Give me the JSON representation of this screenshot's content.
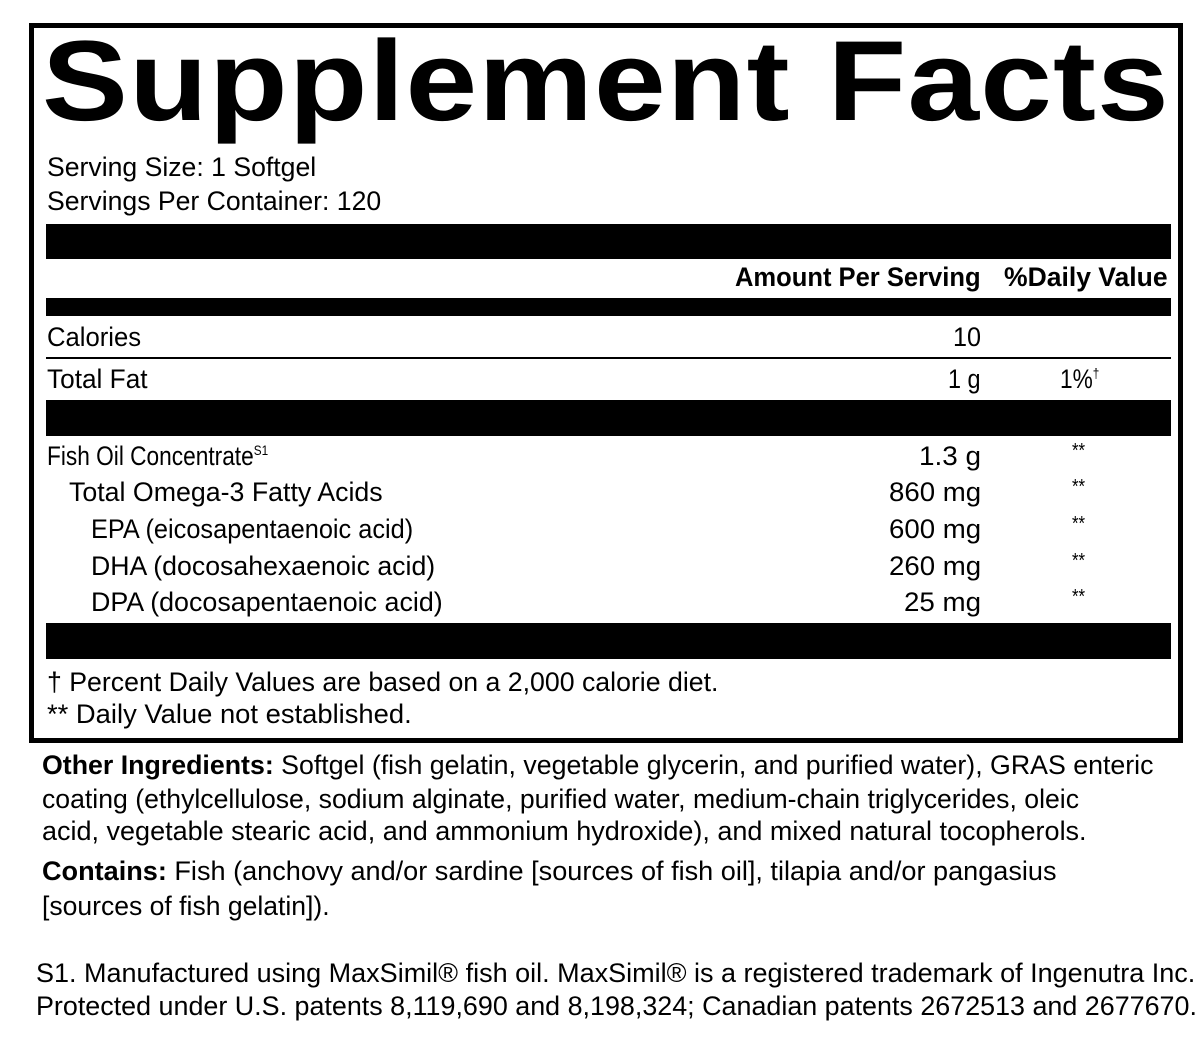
{
  "title": "Supplement Facts",
  "serving_size": "Serving Size: 1 Softgel",
  "servings_per_container": "Servings Per Container: 120",
  "header": {
    "amount": "Amount Per Serving",
    "dv": "%Daily Value"
  },
  "rows": [
    {
      "name": "Calories",
      "amount": "10",
      "dv": ""
    },
    {
      "name": "Total Fat",
      "amount": "1 g",
      "dv": "1%",
      "dv_mark": "†"
    },
    {
      "name": "Fish Oil Concentrate",
      "sup": "S1",
      "amount": "1.3 g",
      "dv": "**"
    },
    {
      "name": "Total Omega-3 Fatty Acids",
      "amount": "860 mg",
      "dv": "**"
    },
    {
      "name": "EPA (eicosapentaenoic acid)",
      "amount": "600 mg",
      "dv": "**"
    },
    {
      "name": "DHA (docosahexaenoic acid)",
      "amount": "260 mg",
      "dv": "**"
    },
    {
      "name": "DPA (docosapentaenoic acid)",
      "amount": "25 mg",
      "dv": "**"
    }
  ],
  "footnotes": [
    "† Percent Daily Values are based on a 2,000 calorie diet.",
    "** Daily Value not established."
  ],
  "other_ingredients": {
    "label": "Other Ingredients:",
    "lines": [
      " Softgel (fish gelatin, vegetable glycerin, and purified water), GRAS enteric",
      "coating (ethylcellulose, sodium alginate, purified water, medium-chain triglycerides, oleic",
      "acid, vegetable stearic acid, and ammonium hydroxide), and mixed natural tocopherols."
    ]
  },
  "contains": {
    "label": "Contains:",
    "lines": [
      " Fish (anchovy and/or sardine [sources of fish oil], tilapia and/or pangasius",
      "[sources of fish gelatin])."
    ]
  },
  "s1_note": [
    "S1. Manufactured using MaxSimil® fish oil. MaxSimil® is a registered trademark of Ingenutra Inc.",
    "Protected under U.S. patents 8,119,690 and 8,198,324; Canadian patents 2672513 and 2677670."
  ]
}
